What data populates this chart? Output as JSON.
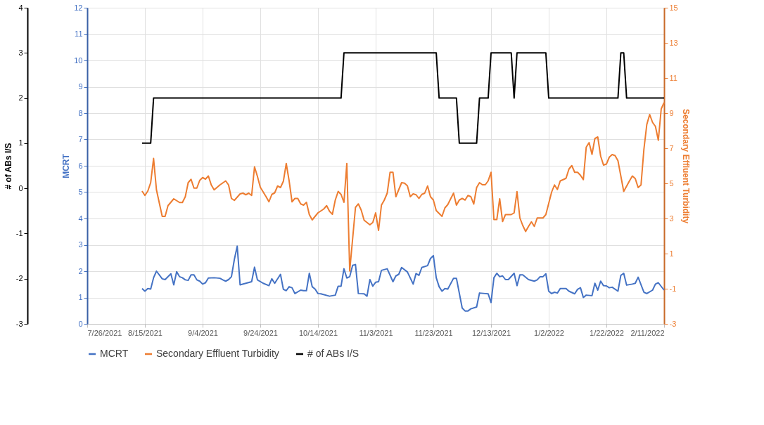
{
  "chart_data": {
    "type": "line",
    "ylabel": "MCRT",
    "y2label": "Secondary Effluent Turbidity",
    "y3label": "# of ABs I/S",
    "xlim": [
      "2021-07-26",
      "2022-02-11"
    ],
    "xticks": [
      {
        "value": "2021-07-26",
        "label": "7/26/2021"
      },
      {
        "value": "2021-08-15",
        "label": "8/15/2021"
      },
      {
        "value": "2021-09-04",
        "label": "9/4/2021"
      },
      {
        "value": "2021-09-24",
        "label": "9/24/2021"
      },
      {
        "value": "2021-10-14",
        "label": "10/14/2021"
      },
      {
        "value": "2021-11-03",
        "label": "11/3/2021"
      },
      {
        "value": "2021-11-23",
        "label": "11/23/2021"
      },
      {
        "value": "2021-12-13",
        "label": "12/13/2021"
      },
      {
        "value": "2022-01-02",
        "label": "1/2/2022"
      },
      {
        "value": "2022-01-22",
        "label": "1/22/2022"
      },
      {
        "value": "2022-02-11",
        "label": "2/11/2022"
      }
    ],
    "ylim": [
      0,
      12
    ],
    "yticks": [
      0,
      1,
      2,
      3,
      4,
      5,
      6,
      7,
      8,
      9,
      10,
      11,
      12
    ],
    "y2lim": [
      -3,
      15
    ],
    "y2ticks": [
      -3,
      -1,
      1,
      3,
      5,
      7,
      9,
      11,
      13,
      15
    ],
    "y3lim": [
      -3,
      4
    ],
    "y3ticks": [
      -3,
      -2,
      -1,
      0,
      1,
      2,
      3,
      4
    ],
    "grid": true,
    "legend": "bottom",
    "marker": "none",
    "line_style": "solid",
    "series": [
      {
        "name": "MCRT",
        "color": "#4472c4",
        "axis": "y",
        "x": [
          "2021-08-14",
          "2021-08-15",
          "2021-08-16",
          "2021-08-17",
          "2021-08-18",
          "2021-08-19",
          "2021-08-21",
          "2021-08-22",
          "2021-08-24",
          "2021-08-25",
          "2021-08-26",
          "2021-08-27",
          "2021-08-28",
          "2021-08-29",
          "2021-08-30",
          "2021-08-31",
          "2021-09-01",
          "2021-09-02",
          "2021-09-03",
          "2021-09-04",
          "2021-09-05",
          "2021-09-06",
          "2021-09-08",
          "2021-09-10",
          "2021-09-11",
          "2021-09-12",
          "2021-09-13",
          "2021-09-14",
          "2021-09-15",
          "2021-09-16",
          "2021-09-17",
          "2021-09-21",
          "2021-09-22",
          "2021-09-23",
          "2021-09-25",
          "2021-09-27",
          "2021-09-28",
          "2021-09-29",
          "2021-10-01",
          "2021-10-02",
          "2021-10-03",
          "2021-10-04",
          "2021-10-05",
          "2021-10-06",
          "2021-10-08",
          "2021-10-09",
          "2021-10-10",
          "2021-10-11",
          "2021-10-12",
          "2021-10-13",
          "2021-10-14",
          "2021-10-15",
          "2021-10-18",
          "2021-10-20",
          "2021-10-21",
          "2021-10-22",
          "2021-10-23",
          "2021-10-24",
          "2021-10-25",
          "2021-10-26",
          "2021-10-27",
          "2021-10-28",
          "2021-10-30",
          "2021-10-31",
          "2021-11-01",
          "2021-11-02",
          "2021-11-03",
          "2021-11-04",
          "2021-11-05",
          "2021-11-07",
          "2021-11-09",
          "2021-11-10",
          "2021-11-11",
          "2021-11-12",
          "2021-11-14",
          "2021-11-16",
          "2021-11-17",
          "2021-11-18",
          "2021-11-19",
          "2021-11-21",
          "2021-11-22",
          "2021-11-23",
          "2021-11-24",
          "2021-11-25",
          "2021-11-26",
          "2021-11-27",
          "2021-11-28",
          "2021-11-30",
          "2021-12-01",
          "2021-12-03",
          "2021-12-04",
          "2021-12-05",
          "2021-12-06",
          "2021-12-08",
          "2021-12-09",
          "2021-12-11",
          "2021-12-12",
          "2021-12-13",
          "2021-12-14",
          "2021-12-15",
          "2021-12-16",
          "2021-12-17",
          "2021-12-18",
          "2021-12-19",
          "2021-12-21",
          "2021-12-22",
          "2021-12-23",
          "2021-12-24",
          "2021-12-26",
          "2021-12-28",
          "2021-12-29",
          "2021-12-30",
          "2021-12-31",
          "2022-01-01",
          "2022-01-02",
          "2022-01-03",
          "2022-01-04",
          "2022-01-05",
          "2022-01-06",
          "2022-01-08",
          "2022-01-09",
          "2022-01-11",
          "2022-01-12",
          "2022-01-13",
          "2022-01-14",
          "2022-01-15",
          "2022-01-17",
          "2022-01-18",
          "2022-01-19",
          "2022-01-20",
          "2022-01-21",
          "2022-01-22",
          "2022-01-23",
          "2022-01-24",
          "2022-01-26",
          "2022-01-27",
          "2022-01-28",
          "2022-01-29",
          "2022-01-31",
          "2022-02-01",
          "2022-02-02",
          "2022-02-04",
          "2022-02-05",
          "2022-02-07",
          "2022-02-08",
          "2022-02-09",
          "2022-02-11"
        ],
        "values": [
          1.34,
          1.24,
          1.34,
          1.32,
          1.75,
          2.0,
          1.71,
          1.68,
          1.9,
          1.48,
          1.98,
          1.79,
          1.75,
          1.67,
          1.65,
          1.86,
          1.86,
          1.67,
          1.62,
          1.51,
          1.56,
          1.74,
          1.75,
          1.73,
          1.67,
          1.62,
          1.68,
          1.79,
          2.44,
          2.95,
          1.48,
          1.6,
          2.15,
          1.67,
          1.54,
          1.45,
          1.71,
          1.54,
          1.88,
          1.31,
          1.26,
          1.41,
          1.37,
          1.15,
          1.28,
          1.26,
          1.26,
          1.92,
          1.41,
          1.32,
          1.15,
          1.14,
          1.05,
          1.09,
          1.43,
          1.43,
          2.09,
          1.74,
          1.79,
          2.22,
          2.25,
          1.15,
          1.14,
          1.05,
          1.68,
          1.43,
          1.58,
          1.6,
          2.03,
          2.09,
          1.6,
          1.82,
          1.88,
          2.14,
          1.97,
          1.51,
          1.91,
          1.84,
          2.14,
          2.21,
          2.48,
          2.59,
          1.75,
          1.41,
          1.24,
          1.34,
          1.32,
          1.73,
          1.73,
          0.6,
          0.49,
          0.49,
          0.57,
          0.64,
          1.17,
          1.15,
          1.14,
          0.81,
          1.75,
          1.92,
          1.79,
          1.82,
          1.68,
          1.68,
          1.92,
          1.45,
          1.86,
          1.86,
          1.68,
          1.62,
          1.67,
          1.79,
          1.79,
          1.9,
          1.24,
          1.15,
          1.2,
          1.17,
          1.34,
          1.34,
          1.24,
          1.14,
          1.31,
          1.37,
          1.0,
          1.09,
          1.07,
          1.54,
          1.28,
          1.62,
          1.45,
          1.44,
          1.37,
          1.39,
          1.24,
          1.84,
          1.92,
          1.47,
          1.51,
          1.54,
          1.77,
          1.2,
          1.15,
          1.28,
          1.51,
          1.56,
          1.28
        ]
      },
      {
        "name": "Secondary Effluent Turbidity",
        "color": "#ed7d31",
        "axis": "y2",
        "x": [
          "2021-08-14",
          "2021-08-15",
          "2021-08-16",
          "2021-08-17",
          "2021-08-18",
          "2021-08-19",
          "2021-08-21",
          "2021-08-22",
          "2021-08-23",
          "2021-08-25",
          "2021-08-27",
          "2021-08-28",
          "2021-08-29",
          "2021-08-30",
          "2021-08-31",
          "2021-09-01",
          "2021-09-02",
          "2021-09-03",
          "2021-09-04",
          "2021-09-05",
          "2021-09-06",
          "2021-09-07",
          "2021-09-08",
          "2021-09-10",
          "2021-09-12",
          "2021-09-13",
          "2021-09-14",
          "2021-09-15",
          "2021-09-17",
          "2021-09-18",
          "2021-09-19",
          "2021-09-20",
          "2021-09-21",
          "2021-09-22",
          "2021-09-23",
          "2021-09-24",
          "2021-09-26",
          "2021-09-27",
          "2021-09-28",
          "2021-09-29",
          "2021-09-30",
          "2021-10-01",
          "2021-10-02",
          "2021-10-03",
          "2021-10-04",
          "2021-10-05",
          "2021-10-06",
          "2021-10-07",
          "2021-10-08",
          "2021-10-09",
          "2021-10-10",
          "2021-10-11",
          "2021-10-12",
          "2021-10-14",
          "2021-10-16",
          "2021-10-17",
          "2021-10-18",
          "2021-10-19",
          "2021-10-20",
          "2021-10-21",
          "2021-10-22",
          "2021-10-23",
          "2021-10-24",
          "2021-10-25",
          "2021-10-27",
          "2021-10-28",
          "2021-10-29",
          "2021-10-30",
          "2021-11-01",
          "2021-11-02",
          "2021-11-03",
          "2021-11-04",
          "2021-11-05",
          "2021-11-06",
          "2021-11-07",
          "2021-11-08",
          "2021-11-09",
          "2021-11-10",
          "2021-11-12",
          "2021-11-13",
          "2021-11-14",
          "2021-11-15",
          "2021-11-16",
          "2021-11-17",
          "2021-11-18",
          "2021-11-19",
          "2021-11-20",
          "2021-11-21",
          "2021-11-22",
          "2021-11-23",
          "2021-11-24",
          "2021-11-26",
          "2021-11-27",
          "2021-11-28",
          "2021-11-29",
          "2021-11-30",
          "2021-12-01",
          "2021-12-02",
          "2021-12-03",
          "2021-12-04",
          "2021-12-05",
          "2021-12-06",
          "2021-12-07",
          "2021-12-08",
          "2021-12-09",
          "2021-12-10",
          "2021-12-11",
          "2021-12-12",
          "2021-12-13",
          "2021-12-14",
          "2021-12-15",
          "2021-12-16",
          "2021-12-17",
          "2021-12-18",
          "2021-12-20",
          "2021-12-21",
          "2021-12-22",
          "2021-12-23",
          "2021-12-24",
          "2021-12-25",
          "2021-12-26",
          "2021-12-27",
          "2021-12-28",
          "2021-12-29",
          "2021-12-31",
          "2022-01-01",
          "2022-01-02",
          "2022-01-03",
          "2022-01-04",
          "2022-01-05",
          "2022-01-06",
          "2022-01-07",
          "2022-01-08",
          "2022-01-09",
          "2022-01-10",
          "2022-01-11",
          "2022-01-12",
          "2022-01-13",
          "2022-01-14",
          "2022-01-15",
          "2022-01-16",
          "2022-01-17",
          "2022-01-18",
          "2022-01-19",
          "2022-01-20",
          "2022-01-21",
          "2022-01-22",
          "2022-01-23",
          "2022-01-24",
          "2022-01-25",
          "2022-01-26",
          "2022-01-28",
          "2022-01-30",
          "2022-01-31",
          "2022-02-01",
          "2022-02-02",
          "2022-02-03",
          "2022-02-04",
          "2022-02-05",
          "2022-02-06",
          "2022-02-07",
          "2022-02-08",
          "2022-02-09",
          "2022-02-10",
          "2022-02-11"
        ],
        "values": [
          4.56,
          4.31,
          4.56,
          5.04,
          6.42,
          4.63,
          3.12,
          3.12,
          3.73,
          4.12,
          3.91,
          3.91,
          4.24,
          5.04,
          5.23,
          4.73,
          4.73,
          5.17,
          5.33,
          5.24,
          5.42,
          4.91,
          4.63,
          4.91,
          5.14,
          4.91,
          4.14,
          4.03,
          4.4,
          4.44,
          4.35,
          4.44,
          4.31,
          5.94,
          5.4,
          4.78,
          4.24,
          3.95,
          4.37,
          4.46,
          4.85,
          4.76,
          5.12,
          6.13,
          5.14,
          3.95,
          4.14,
          4.14,
          3.83,
          3.76,
          3.92,
          3.22,
          2.92,
          3.32,
          3.54,
          3.73,
          3.41,
          3.24,
          4.05,
          4.54,
          4.37,
          3.92,
          6.13,
          0.01,
          3.63,
          3.83,
          3.47,
          2.9,
          2.64,
          2.77,
          3.32,
          2.32,
          3.76,
          4.05,
          4.44,
          5.63,
          5.63,
          4.24,
          5.04,
          5.01,
          4.86,
          4.24,
          4.4,
          4.35,
          4.14,
          4.37,
          4.44,
          4.85,
          4.24,
          4.05,
          3.45,
          3.12,
          3.6,
          3.79,
          4.12,
          4.44,
          3.76,
          4.05,
          4.14,
          4.05,
          4.31,
          4.24,
          3.82,
          4.76,
          5.04,
          4.92,
          4.92,
          5.14,
          5.63,
          2.94,
          2.94,
          4.12,
          2.83,
          3.22,
          3.22,
          3.32,
          4.53,
          3.03,
          2.6,
          2.26,
          2.55,
          2.81,
          2.55,
          3.03,
          3.03,
          3.22,
          3.86,
          4.5,
          4.91,
          4.65,
          5.14,
          5.21,
          5.29,
          5.81,
          6.01,
          5.63,
          5.63,
          5.46,
          5.21,
          7.06,
          7.32,
          6.65,
          7.55,
          7.64,
          6.55,
          6.04,
          6.1,
          6.49,
          6.64,
          6.58,
          6.29,
          4.54,
          5.14,
          5.42,
          5.27,
          4.76,
          4.91,
          6.94,
          8.35,
          8.92,
          8.47,
          8.24,
          7.45,
          9.24,
          9.6
        ]
      },
      {
        "name": "# of ABs I/S",
        "color": "#000000",
        "axis": "y3",
        "x": [
          "2021-08-14",
          "2021-08-17",
          "2021-08-18",
          "2021-10-22",
          "2021-10-23",
          "2021-11-24",
          "2021-11-25",
          "2021-12-01",
          "2021-12-02",
          "2021-12-08",
          "2021-12-09",
          "2021-12-12",
          "2021-12-13",
          "2021-12-20",
          "2021-12-21",
          "2021-12-22",
          "2022-01-01",
          "2022-01-02",
          "2022-01-26",
          "2022-01-27",
          "2022-01-28",
          "2022-01-29",
          "2022-02-11"
        ],
        "values": [
          1,
          1,
          2,
          2,
          3,
          3,
          2,
          2,
          1,
          1,
          2,
          2,
          3,
          3,
          2,
          3,
          3,
          2,
          2,
          3,
          3,
          2,
          2
        ]
      }
    ]
  }
}
